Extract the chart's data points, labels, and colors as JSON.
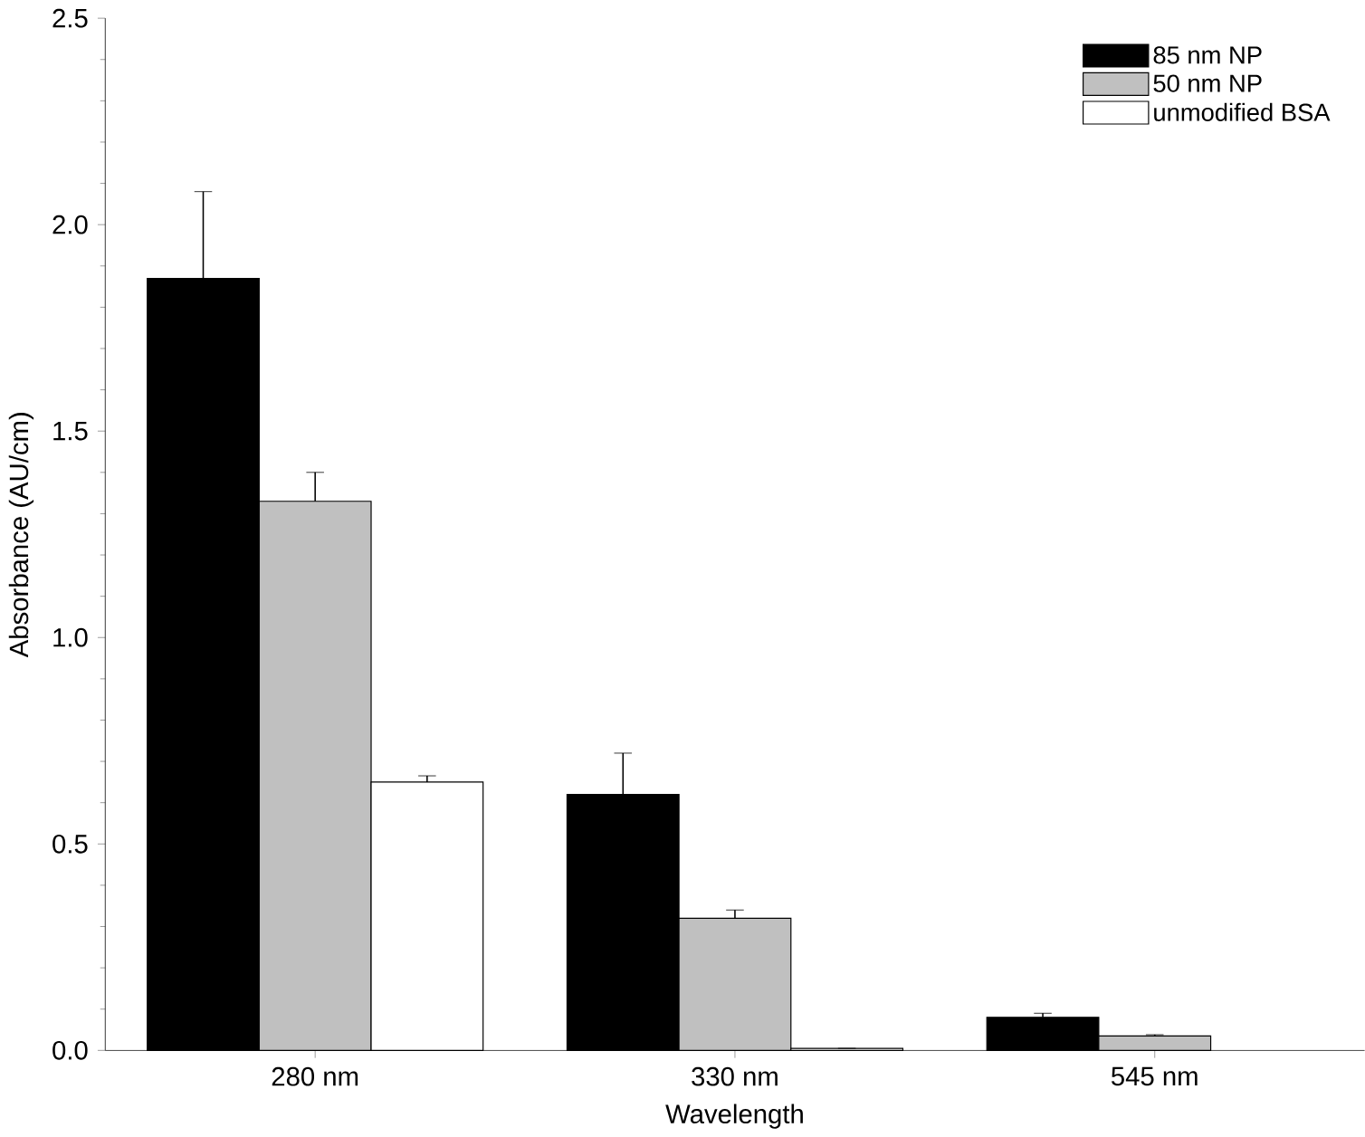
{
  "chart_data": {
    "type": "bar",
    "xlabel": "Wavelength",
    "ylabel": "Absorbance (AU/cm)",
    "categories": [
      "280 nm",
      "330 nm",
      "545 nm"
    ],
    "series": [
      {
        "name": "85 nm NP",
        "color": "#000000",
        "values": [
          1.87,
          0.62,
          0.08
        ],
        "errors": [
          0.21,
          0.1,
          0.01
        ]
      },
      {
        "name": "50 nm NP",
        "color": "#c0c0c0",
        "values": [
          1.33,
          0.32,
          0.035
        ],
        "errors": [
          0.07,
          0.02,
          0.003
        ]
      },
      {
        "name": "unmodified BSA",
        "color": "#ffffff",
        "values": [
          0.65,
          0.005,
          null
        ],
        "errors": [
          0.015,
          null,
          null
        ]
      }
    ],
    "ylim": [
      0,
      2.5
    ],
    "yticks": [
      {
        "value": 0,
        "label": "0.0"
      },
      0.5,
      {
        "value": 1,
        "label": "1.0"
      },
      1.5,
      {
        "value": 2,
        "label": "2.0"
      },
      2.5
    ],
    "legend": "top right"
  }
}
